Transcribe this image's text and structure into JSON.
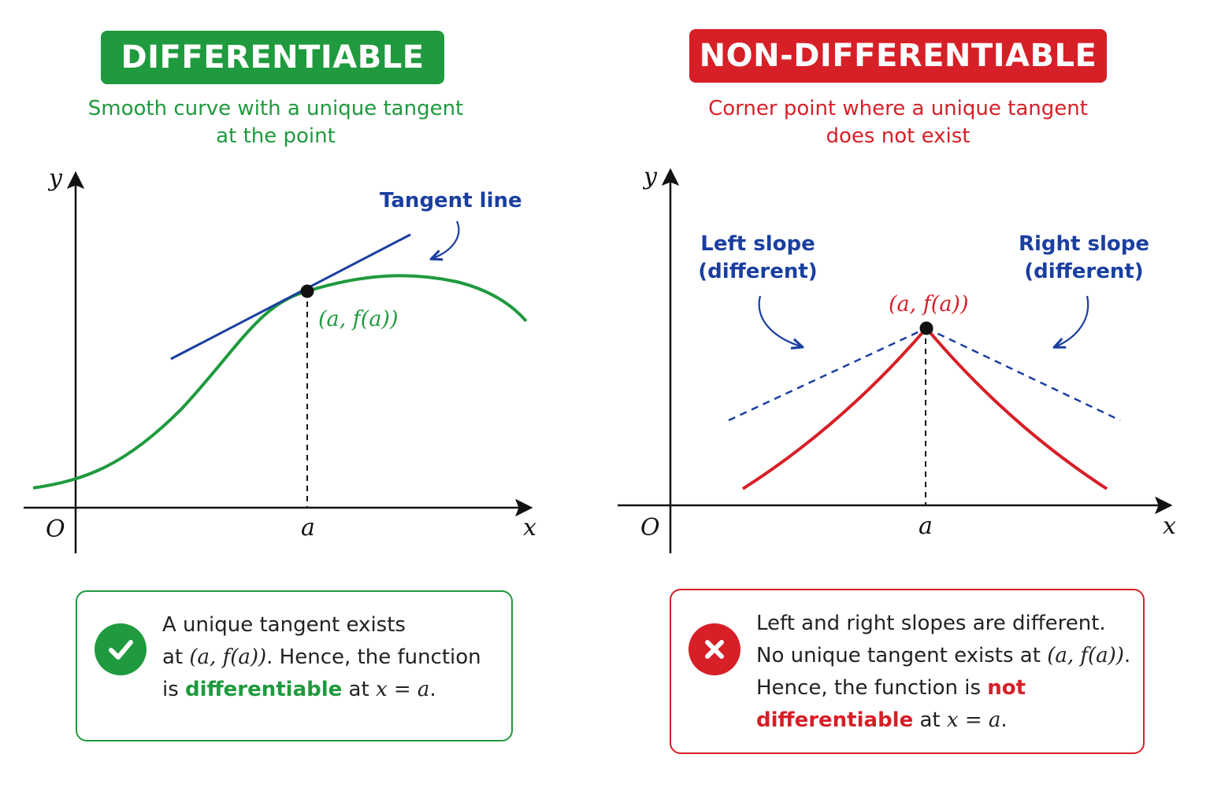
{
  "left_panel": {
    "badge": "DIFFERENTIABLE",
    "subtitle_line1": "Smooth curve with a unique tangent",
    "subtitle_line2": "at the point",
    "tangent_label": "Tangent line",
    "point_label": "(a, f(a))",
    "axis_x": "x",
    "axis_y": "y",
    "origin": "O",
    "tick_a": "a",
    "card": {
      "line1": "A unique tangent exists",
      "line2_a": "at ",
      "line2_math": "(a, f(a))",
      "line2_b": ". Hence, the function",
      "line3_a": "is ",
      "line3_bold": "differentiable",
      "line3_b": " at ",
      "line3_math": "x = a",
      "line3_end": "."
    },
    "icon": "check-icon",
    "color": "#1f9a3e"
  },
  "right_panel": {
    "badge": "NON-DIFFERENTIABLE",
    "subtitle_line1": "Corner point where a unique tangent",
    "subtitle_line2": "does not exist",
    "left_slope_line1": "Left slope",
    "left_slope_line2": "(different)",
    "right_slope_line1": "Right slope",
    "right_slope_line2": "(different)",
    "point_label": "(a, f(a))",
    "axis_x": "x",
    "axis_y": "y",
    "origin": "O",
    "tick_a": "a",
    "card": {
      "line1": "Left and right slopes are different.",
      "line2_a": "No unique tangent exists at ",
      "line2_math": "(a, f(a))",
      "line2_b": ".",
      "line3_a": "Hence, the function is ",
      "line3_bold": "not",
      "line4_bold": "differentiable",
      "line4_b": " at ",
      "line4_math": "x = a",
      "line4_end": "."
    },
    "icon": "cross-icon",
    "color": "#d71f27"
  },
  "colors": {
    "green": "#1f9a3e",
    "red": "#d71f27",
    "blue": "#1a3fa0"
  }
}
